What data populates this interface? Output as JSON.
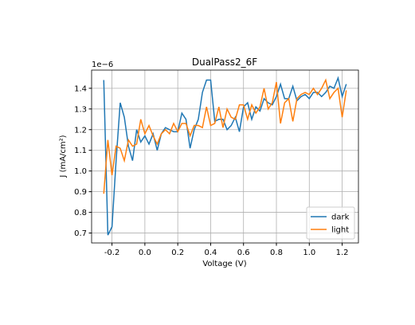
{
  "chart_data": {
    "type": "line",
    "title": "DualPass2_6F",
    "xlabel": "Voltage (V)",
    "ylabel": "J (mA/cm²)",
    "y_offset_label": "1e−6",
    "x": [
      -0.25,
      -0.225,
      -0.2,
      -0.175,
      -0.15,
      -0.125,
      -0.1,
      -0.075,
      -0.05,
      -0.025,
      0,
      0.025,
      0.05,
      0.075,
      0.1,
      0.125,
      0.15,
      0.175,
      0.2,
      0.225,
      0.25,
      0.275,
      0.3,
      0.325,
      0.35,
      0.375,
      0.4,
      0.425,
      0.45,
      0.475,
      0.5,
      0.525,
      0.55,
      0.575,
      0.6,
      0.625,
      0.65,
      0.675,
      0.7,
      0.725,
      0.75,
      0.775,
      0.8,
      0.825,
      0.85,
      0.875,
      0.9,
      0.925,
      0.95,
      0.975,
      1.0,
      1.025,
      1.05,
      1.075,
      1.1,
      1.125,
      1.15,
      1.175,
      1.2,
      1.225
    ],
    "series": [
      {
        "name": "dark",
        "color": "#1f77b4",
        "values": [
          1.44,
          0.69,
          0.73,
          1.05,
          1.33,
          1.26,
          1.12,
          1.05,
          1.2,
          1.14,
          1.17,
          1.13,
          1.18,
          1.1,
          1.18,
          1.21,
          1.2,
          1.19,
          1.19,
          1.28,
          1.25,
          1.11,
          1.2,
          1.25,
          1.38,
          1.44,
          1.44,
          1.24,
          1.25,
          1.25,
          1.2,
          1.22,
          1.26,
          1.19,
          1.31,
          1.33,
          1.25,
          1.31,
          1.29,
          1.35,
          1.33,
          1.32,
          1.36,
          1.42,
          1.35,
          1.35,
          1.41,
          1.34,
          1.36,
          1.37,
          1.35,
          1.38,
          1.38,
          1.36,
          1.38,
          1.41,
          1.4,
          1.45,
          1.36,
          1.42
        ]
      },
      {
        "name": "light",
        "color": "#ff7f0e",
        "values": [
          0.89,
          1.15,
          0.98,
          1.12,
          1.11,
          1.05,
          1.15,
          1.12,
          1.13,
          1.25,
          1.18,
          1.22,
          1.17,
          1.13,
          1.18,
          1.2,
          1.18,
          1.23,
          1.19,
          1.23,
          1.23,
          1.17,
          1.22,
          1.22,
          1.21,
          1.31,
          1.22,
          1.23,
          1.31,
          1.21,
          1.3,
          1.26,
          1.25,
          1.32,
          1.32,
          1.25,
          1.32,
          1.28,
          1.31,
          1.4,
          1.3,
          1.33,
          1.43,
          1.23,
          1.33,
          1.35,
          1.24,
          1.35,
          1.37,
          1.38,
          1.37,
          1.4,
          1.37,
          1.4,
          1.44,
          1.35,
          1.38,
          1.4,
          1.26,
          1.39
        ]
      }
    ],
    "xlim": [
      -0.324,
      1.299
    ],
    "ylim": [
      0.652,
      1.488
    ],
    "xticks": [
      -0.2,
      {
        "value": 0,
        "label": "0.0"
      },
      0.2,
      0.4,
      0.6,
      0.8,
      {
        "value": 1,
        "label": "1.0"
      },
      1.2
    ],
    "yticks": [
      0.7,
      0.8,
      0.9,
      {
        "value": 1,
        "label": "1.0"
      },
      1.1,
      1.2,
      1.3,
      1.4
    ],
    "grid": true,
    "legend": "lower right"
  }
}
